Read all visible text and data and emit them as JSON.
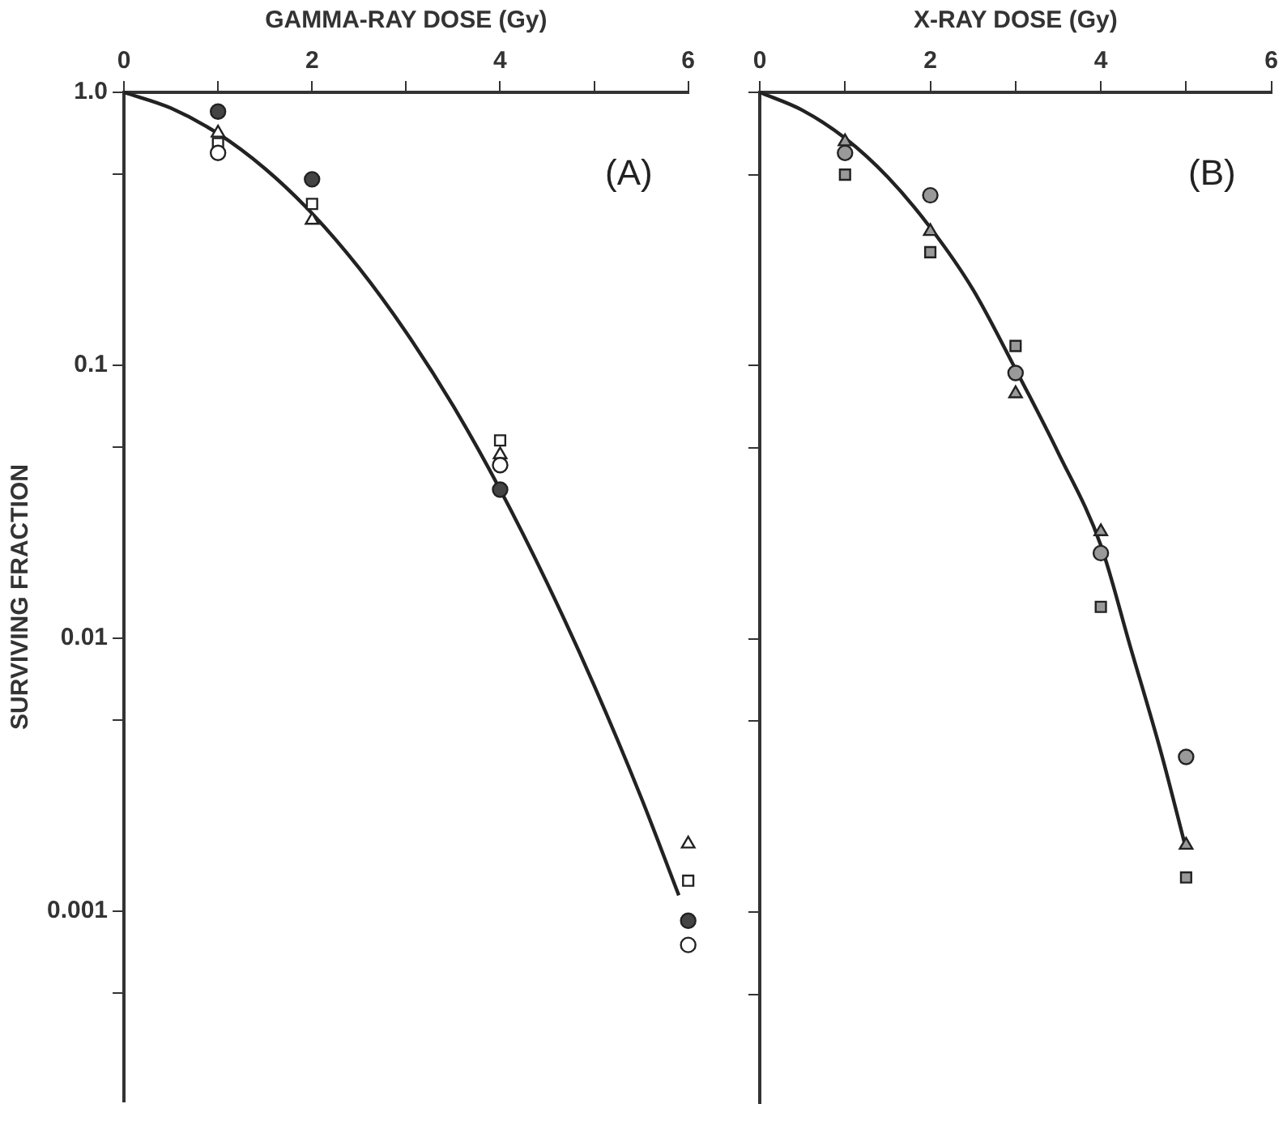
{
  "chart_data": [
    {
      "type": "scatter",
      "xlabel": "GAMMA-RAY DOSE (Gy)",
      "ylabel": "SURVIVING FRACTION",
      "annotations": [
        "(A)"
      ],
      "log": "y",
      "grid": false,
      "legend": false,
      "xlim": [
        0,
        6
      ],
      "xticks": [
        0,
        {
          "value": 1,
          "label": null
        },
        2,
        {
          "value": 3,
          "label": null
        },
        4,
        {
          "value": 5,
          "label": null
        },
        6
      ],
      "ylim": [
        0.0002,
        1
      ],
      "yticks": [
        {
          "value": 1,
          "label": "1.0"
        },
        {
          "value": 0.5,
          "label": null
        },
        0.1,
        {
          "value": 0.05,
          "label": null
        },
        0.01,
        {
          "value": 0.005,
          "label": null
        },
        0.001,
        {
          "value": 0.0005,
          "label": null
        }
      ],
      "series": [
        {
          "color": "#444444",
          "marker": "circle",
          "x": [
            1,
            2,
            4,
            6
          ],
          "values": [
            0.85,
            0.48,
            0.035,
            0.00092
          ]
        },
        {
          "color": "#ffffff",
          "marker": "circle",
          "x": [
            1,
            4,
            6
          ],
          "values": [
            0.6,
            0.043,
            0.00075
          ]
        },
        {
          "color": "#ffffff",
          "marker": "triangle",
          "x": [
            1,
            2,
            4,
            6
          ],
          "values": [
            0.71,
            0.34,
            0.047,
            0.00176
          ]
        },
        {
          "color": "#ffffff",
          "marker": "square",
          "x": [
            1,
            2,
            4,
            6
          ],
          "values": [
            0.65,
            0.39,
            0.053,
            0.00129
          ]
        },
        {
          "type": "line",
          "color": "#222222",
          "marker": "none",
          "x": [
            0,
            0.5,
            1,
            1.5,
            2,
            2.5,
            3,
            3.5,
            4,
            4.5,
            5,
            5.5,
            5.9
          ],
          "values": [
            1,
            0.875,
            0.706,
            0.525,
            0.36,
            0.227,
            0.132,
            0.071,
            0.035,
            0.0159,
            0.0067,
            0.0026,
            0.00114
          ]
        }
      ]
    },
    {
      "type": "scatter",
      "xlabel": "X-RAY DOSE (Gy)",
      "annotations": [
        "(B)"
      ],
      "log": "y",
      "grid": false,
      "legend": false,
      "tick_labels": "x",
      "xlim": [
        0,
        6
      ],
      "xticks": [
        0,
        {
          "value": 1,
          "label": null
        },
        2,
        {
          "value": 3,
          "label": null
        },
        4,
        {
          "value": 5,
          "label": null
        },
        6
      ],
      "ylim": [
        0.0002,
        1
      ],
      "yticks": [
        {
          "value": 1,
          "label": null
        },
        {
          "value": 0.5,
          "label": null
        },
        {
          "value": 0.1,
          "label": null
        },
        {
          "value": 0.05,
          "label": null
        },
        {
          "value": 0.01,
          "label": null
        },
        {
          "value": 0.005,
          "label": null
        },
        {
          "value": 0.001,
          "label": null
        },
        {
          "value": 0.0005,
          "label": null
        }
      ],
      "series": [
        {
          "color": "#999999",
          "marker": "triangle",
          "x": [
            1,
            2,
            3,
            4,
            5
          ],
          "values": [
            0.66,
            0.31,
            0.079,
            0.0247,
            0.00176
          ]
        },
        {
          "color": "#999999",
          "marker": "circle",
          "x": [
            1,
            2,
            3,
            4,
            5
          ],
          "values": [
            0.6,
            0.42,
            0.094,
            0.0206,
            0.0037
          ]
        },
        {
          "color": "#999999",
          "marker": "square",
          "x": [
            1,
            2,
            3,
            4,
            5
          ],
          "values": [
            0.5,
            0.26,
            0.118,
            0.0131,
            0.00134
          ]
        },
        {
          "type": "line",
          "color": "#222222",
          "marker": "none",
          "x": [
            0,
            0.5,
            1,
            1.5,
            2,
            2.5,
            3,
            3.5,
            4,
            4.34,
            4.71,
            5
          ],
          "values": [
            1,
            0.86,
            0.68,
            0.49,
            0.32,
            0.19,
            0.097,
            0.048,
            0.022,
            0.0095,
            0.0038,
            0.0017
          ]
        }
      ]
    }
  ]
}
